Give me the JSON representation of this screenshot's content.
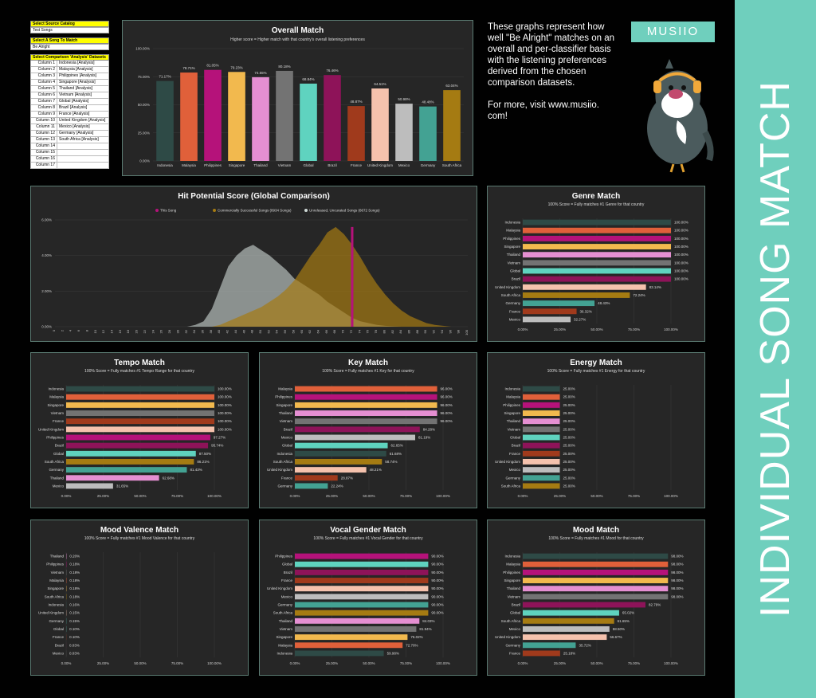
{
  "brand": {
    "logo": "MUSIIO",
    "band_text": "INDIVIDUAL SONG MATCH",
    "accent": "#6fcfbd"
  },
  "description": {
    "line1": "These graphs represent how well \"Be Alright\" matches on an overall and per-classifier basis with the listening preferences derived from the chosen comparison datasets.",
    "line2": "For more, visit www.musiio. com!"
  },
  "controls": {
    "source_label": "Select Source Catalog",
    "source_value": "Test Songs",
    "song_label": "Select A Song To Match",
    "song_value": "Be Alright",
    "datasets_label": "Select Comparison 'Analysis' Datasets",
    "rows": [
      {
        "col": "Column 1",
        "val": "Indonesia [Analysis]"
      },
      {
        "col": "Column 2",
        "val": "Malaysia [Analysis]"
      },
      {
        "col": "Column 3",
        "val": "Philippines [Analysis]"
      },
      {
        "col": "Column 4",
        "val": "Singapore [Analysis]"
      },
      {
        "col": "Column 5",
        "val": "Thailand [Analysis]"
      },
      {
        "col": "Column 6",
        "val": "Vietnam [Analysis]"
      },
      {
        "col": "Column 7",
        "val": "Global [Analysis]"
      },
      {
        "col": "Column 8",
        "val": "Brazil [Analysis]"
      },
      {
        "col": "Column 9",
        "val": "France [Analysis]"
      },
      {
        "col": "Column 10",
        "val": "United Kingdom [Analysis]"
      },
      {
        "col": "Column 11",
        "val": "Mexico [Analysis]"
      },
      {
        "col": "Column 12",
        "val": "Germany [Analysis]"
      },
      {
        "col": "Column 13",
        "val": "South Africa [Analysis]"
      },
      {
        "col": "Column 14",
        "val": ""
      },
      {
        "col": "Column 15",
        "val": ""
      },
      {
        "col": "Column 16",
        "val": ""
      },
      {
        "col": "Column 17",
        "val": ""
      }
    ]
  },
  "country_colors": {
    "Indonesia": "#2e4a46",
    "Malaysia": "#e0603a",
    "Philippines": "#b5127a",
    "Singapore": "#f2b94e",
    "Thailand": "#e58fd2",
    "Vietnam": "#737373",
    "Global": "#5fd3bf",
    "Brazil": "#8e1359",
    "France": "#a03a1c",
    "United Kingdom": "#f5c2ad",
    "Mexico": "#bdbdbd",
    "Germany": "#43a293",
    "South Africa": "#a57b12"
  },
  "chart_data": [
    {
      "id": "overall",
      "type": "bar",
      "title": "Overall Match",
      "subtitle": "Higher score = Higher match with that country's overall listening preferences",
      "categories": [
        "Indonesia",
        "Malaysia",
        "Philippines",
        "Singapore",
        "Thailand",
        "Vietnam",
        "Global",
        "Brazil",
        "France",
        "United Kingdom",
        "Mexico",
        "Germany",
        "South Africa"
      ],
      "values": [
        71.17,
        78.71,
        81.05,
        79.23,
        74.55,
        80.18,
        68.84,
        76.46,
        48.87,
        64.51,
        50.98,
        48.48,
        63.04
      ],
      "labels": [
        "71.17%",
        "78.71%",
        "81.05%",
        "79.23%",
        "74.55%",
        "80.18%",
        "68.84%",
        "76.46%",
        "48.87%",
        "64.51%",
        "50.98%",
        "48.48%",
        "63.04%"
      ],
      "ylim": [
        0,
        100
      ],
      "yticks": [
        "0.00%",
        "25.00%",
        "50.00%",
        "75.00%",
        "100.00%"
      ]
    },
    {
      "id": "hit",
      "type": "area",
      "title": "Hit Potential Score (Global Comparison)",
      "legend": [
        "This Song",
        "Commercially Successful Songs (8934 Songs)",
        "Unreleased, Uncurated Songs (8672 Songs)"
      ],
      "legend_colors": [
        "#b5127a",
        "#a57b12",
        "#cfd9d6"
      ],
      "x": [
        0,
        2,
        4,
        6,
        8,
        10,
        12,
        14,
        16,
        18,
        20,
        22,
        24,
        26,
        28,
        30,
        32,
        34,
        36,
        38,
        40,
        42,
        44,
        46,
        48,
        50,
        52,
        54,
        56,
        58,
        60,
        62,
        64,
        66,
        68,
        70,
        72,
        74,
        76,
        78,
        80,
        82,
        84,
        86,
        88,
        90,
        92,
        94,
        96,
        98,
        100
      ],
      "series": [
        {
          "name": "Unreleased, Uncurated Songs (8672 Songs)",
          "values": [
            0,
            0,
            0,
            0,
            0,
            0,
            0,
            0,
            0,
            0,
            0,
            0,
            0,
            0,
            0,
            0,
            0,
            0.1,
            0.3,
            1.0,
            2.2,
            3.4,
            4.0,
            4.4,
            4.6,
            4.3,
            4.0,
            3.6,
            3.2,
            2.7,
            2.4,
            2.1,
            1.8,
            1.4,
            1.1,
            0.8,
            0.5,
            0.3,
            0.2,
            0.1,
            0.05,
            0.02,
            0,
            0,
            0,
            0,
            0,
            0,
            0,
            0,
            0
          ]
        },
        {
          "name": "Commercially Successful Songs (8934 Songs)",
          "values": [
            0,
            0,
            0,
            0,
            0,
            0,
            0,
            0,
            0,
            0,
            0,
            0,
            0,
            0,
            0,
            0,
            0,
            0,
            0,
            0,
            0.1,
            0.3,
            0.5,
            0.7,
            0.9,
            1.1,
            1.4,
            1.7,
            2.1,
            2.6,
            3.3,
            4.0,
            4.6,
            5.3,
            5.6,
            5.2,
            4.6,
            3.9,
            3.1,
            2.4,
            1.8,
            1.3,
            0.9,
            0.6,
            0.4,
            0.2,
            0.1,
            0.05,
            0,
            0,
            0
          ]
        }
      ],
      "this_song_x": 72,
      "xticks": [
        "0",
        "2",
        "4",
        "6",
        "8",
        "10",
        "12",
        "14",
        "16",
        "18",
        "20",
        "22",
        "24",
        "26",
        "28",
        "30",
        "32",
        "34",
        "36",
        "38",
        "40",
        "42",
        "44",
        "46",
        "48",
        "50",
        "52",
        "54",
        "56",
        "58",
        "60",
        "62",
        "64",
        "66",
        "68",
        "70",
        "72",
        "74",
        "76",
        "78",
        "80",
        "82",
        "84",
        "86",
        "88",
        "90",
        "92",
        "94",
        "96",
        "98",
        "100"
      ],
      "ylim": [
        0,
        6
      ],
      "yticks": [
        "0.00%",
        "2.00%",
        "4.00%",
        "6.00%"
      ]
    },
    {
      "id": "genre",
      "type": "bar",
      "orientation": "horizontal",
      "title": "Genre Match",
      "subtitle": "100% Score = Fully matches #1 Genre for that country",
      "categories": [
        "Indonesia",
        "Malaysia",
        "Philippines",
        "Singapore",
        "Thailand",
        "Vietnam",
        "Global",
        "Brazil",
        "United Kingdom",
        "South Africa",
        "Germany",
        "France",
        "Mexico"
      ],
      "values": [
        100,
        100,
        100,
        100,
        100,
        100,
        100,
        100,
        83.14,
        72.24,
        48.43,
        36.32,
        32.27
      ],
      "labels": [
        "100.00%",
        "100.00%",
        "100.00%",
        "100.00%",
        "100.00%",
        "100.00%",
        "100.00%",
        "100.00%",
        "83.14%",
        "72.24%",
        "48.43%",
        "36.32%",
        "32.27%"
      ],
      "xlim": [
        0,
        100
      ],
      "xticks": [
        "0.00%",
        "25.00%",
        "50.00%",
        "75.00%",
        "100.00%"
      ]
    },
    {
      "id": "tempo",
      "type": "bar",
      "orientation": "horizontal",
      "title": "Tempo Match",
      "subtitle": "100% Score = Fully matches #1 Tempo Range for that country",
      "categories": [
        "Indonesia",
        "Malaysia",
        "Singapore",
        "Vietnam",
        "France",
        "United Kingdom",
        "Philippines",
        "Brazil",
        "Global",
        "South Africa",
        "Germany",
        "Thailand",
        "Mexico"
      ],
      "values": [
        100,
        100,
        100,
        100,
        100,
        100,
        97.27,
        95.74,
        87.5,
        86.21,
        81.43,
        62.68,
        31.65
      ],
      "labels": [
        "100.00%",
        "100.00%",
        "100.00%",
        "100.00%",
        "100.00%",
        "100.00%",
        "97.27%",
        "95.74%",
        "87.50%",
        "86.21%",
        "81.43%",
        "62.68%",
        "31.65%"
      ],
      "xlim": [
        0,
        100
      ],
      "xticks": [
        "0.00%",
        "25.00%",
        "50.00%",
        "75.00%",
        "100.00%"
      ]
    },
    {
      "id": "key",
      "type": "bar",
      "orientation": "horizontal",
      "title": "Key Match",
      "subtitle": "100% Score = Fully matches #1 Key for that country",
      "categories": [
        "Malaysia",
        "Philippines",
        "Singapore",
        "Thailand",
        "Vietnam",
        "Brazil",
        "Mexico",
        "Global",
        "Indonesia",
        "South Africa",
        "United Kingdom",
        "France",
        "Germany"
      ],
      "values": [
        96,
        96,
        96,
        96,
        96,
        84.28,
        81.19,
        62.65,
        61.68,
        58.74,
        48.21,
        28.87,
        22.24
      ],
      "labels": [
        "96.00%",
        "96.00%",
        "96.00%",
        "96.00%",
        "96.00%",
        "84.28%",
        "81.19%",
        "62.65%",
        "61.68%",
        "58.74%",
        "48.21%",
        "28.87%",
        "22.24%"
      ],
      "xlim": [
        0,
        100
      ],
      "xticks": [
        "0.00%",
        "25.00%",
        "50.00%",
        "75.00%",
        "100.00%"
      ]
    },
    {
      "id": "energy",
      "type": "bar",
      "orientation": "horizontal",
      "title": "Energy Match",
      "subtitle": "100% Score = Fully matches #1 Energy for that country",
      "categories": [
        "Indonesia",
        "Malaysia",
        "Philippines",
        "Singapore",
        "Thailand",
        "Vietnam",
        "Global",
        "Brazil",
        "France",
        "United Kingdom",
        "Mexico",
        "Germany",
        "South Africa"
      ],
      "values": [
        25,
        25,
        25,
        25,
        25,
        25,
        25,
        25,
        25,
        25,
        25,
        25,
        25
      ],
      "labels": [
        "25.00%",
        "25.00%",
        "25.00%",
        "25.00%",
        "25.00%",
        "25.00%",
        "25.00%",
        "25.00%",
        "25.00%",
        "25.00%",
        "25.00%",
        "25.00%",
        "25.00%"
      ],
      "xlim": [
        0,
        100
      ],
      "xticks": [
        "0.00%",
        "25.00%",
        "50.00%",
        "75.00%",
        "100.00%"
      ]
    },
    {
      "id": "valence",
      "type": "bar",
      "orientation": "horizontal",
      "title": "Mood Valence Match",
      "subtitle": "100% Score = Fully matches #1 Mood Valence for that country",
      "categories": [
        "Thailand",
        "Philippines",
        "Vietnam",
        "Malaysia",
        "Singapore",
        "South Africa",
        "Indonesia",
        "United Kingdom",
        "Germany",
        "Global",
        "France",
        "Brazil",
        "Mexico"
      ],
      "values": [
        0.2,
        0.18,
        0.18,
        0.18,
        0.18,
        0.18,
        0.16,
        0.15,
        0.15,
        0.1,
        0.1,
        0.03,
        0.03
      ],
      "labels": [
        "0.20%",
        "0.18%",
        "0.18%",
        "0.18%",
        "0.18%",
        "0.18%",
        "0.16%",
        "0.15%",
        "0.15%",
        "0.10%",
        "0.10%",
        "0.03%",
        "0.03%"
      ],
      "xlim": [
        0,
        100
      ],
      "xticks": [
        "0.00%",
        "25.00%",
        "50.00%",
        "75.00%",
        "100.00%"
      ]
    },
    {
      "id": "vocal",
      "type": "bar",
      "orientation": "horizontal",
      "title": "Vocal Gender Match",
      "subtitle": "100% Score = Fully matches #1 Vocal Gender for that country",
      "categories": [
        "Philippines",
        "Global",
        "Brazil",
        "France",
        "United Kingdom",
        "Mexico",
        "Germany",
        "South Africa",
        "Thailand",
        "Vietnam",
        "Singapore",
        "Malaysia",
        "Indonesia"
      ],
      "values": [
        90,
        90,
        90,
        90,
        90,
        90,
        90,
        90,
        84.03,
        81.94,
        76.02,
        72.7,
        59.98
      ],
      "labels": [
        "90.00%",
        "90.00%",
        "90.00%",
        "90.00%",
        "90.00%",
        "90.00%",
        "90.00%",
        "90.00%",
        "84.03%",
        "81.94%",
        "76.02%",
        "72.70%",
        "59.98%"
      ],
      "xlim": [
        0,
        100
      ],
      "xticks": [
        "0.00%",
        "25.00%",
        "50.00%",
        "75.00%",
        "100.00%"
      ]
    },
    {
      "id": "mood",
      "type": "bar",
      "orientation": "horizontal",
      "title": "Mood Match",
      "subtitle": "100% Score = Fully matches #1 Mood for that country",
      "categories": [
        "Indonesia",
        "Malaysia",
        "Philippines",
        "Singapore",
        "Thailand",
        "Vietnam",
        "Brazil",
        "Global",
        "South Africa",
        "Mexico",
        "United Kingdom",
        "Germany",
        "France"
      ],
      "values": [
        98,
        98,
        98,
        98,
        98,
        98,
        82.79,
        65.02,
        61.65,
        58.5,
        56.67,
        35.72,
        25.18
      ],
      "labels": [
        "98.00%",
        "98.00%",
        "98.00%",
        "98.00%",
        "98.00%",
        "98.00%",
        "82.79%",
        "65.02%",
        "61.65%",
        "58.50%",
        "56.67%",
        "35.72%",
        "25.18%"
      ],
      "xlim": [
        0,
        100
      ],
      "xticks": [
        "0.00%",
        "25.00%",
        "50.00%",
        "75.00%",
        "100.00%"
      ]
    }
  ]
}
